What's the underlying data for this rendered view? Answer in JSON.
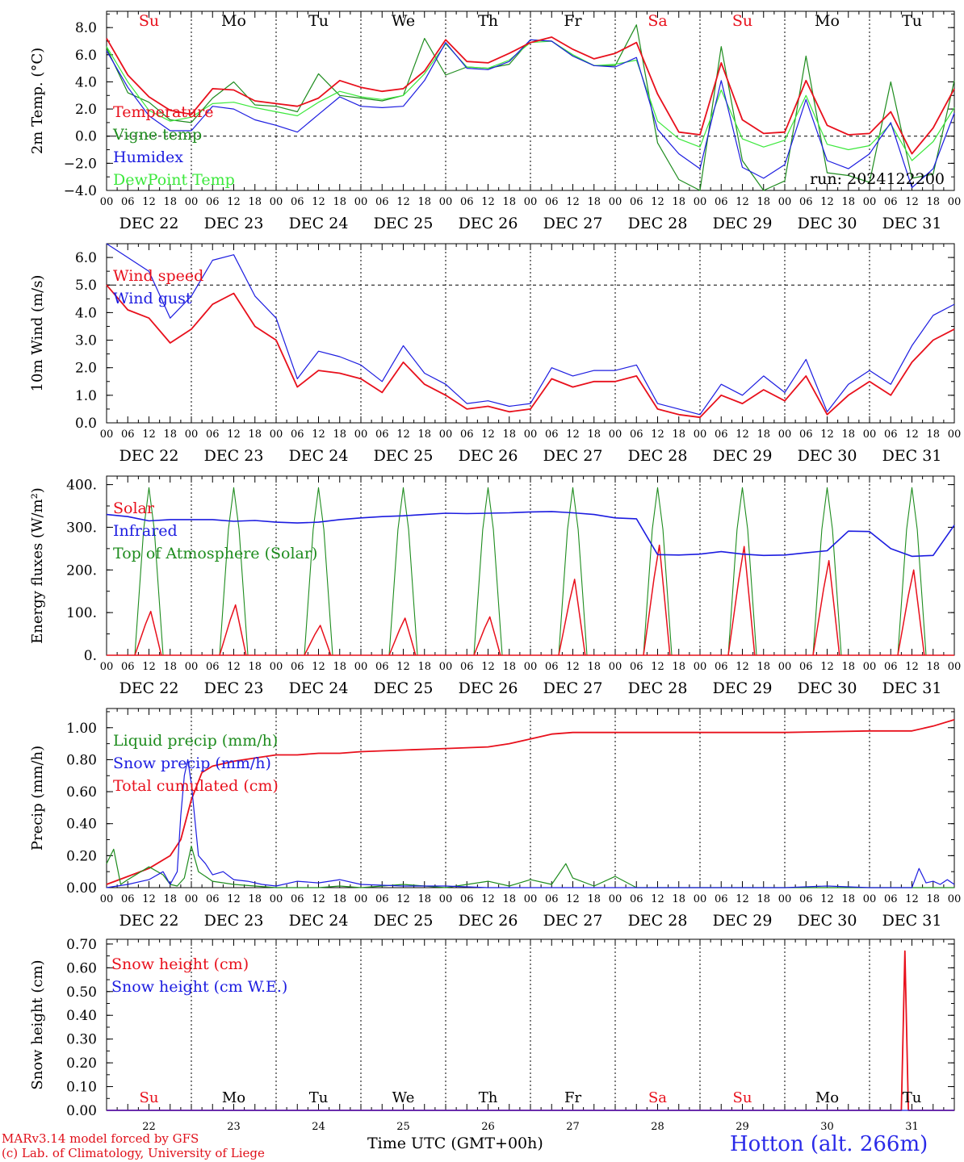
{
  "footer": {
    "model_line": "MARv3.14 model forced by GFS",
    "copyright_line": "(c) Lab. of Climatology, University of Liege",
    "time_axis_label": "Time UTC (GMT+00h)",
    "station": "Hotton (alt. 266m)"
  },
  "colors": {
    "red": "#e8101c",
    "green": "#1e8c1e",
    "blue": "#1c1ce0",
    "lightgreen": "#3ce83c"
  },
  "chart_data": [
    {
      "type": "line",
      "id": "temp",
      "ylabel": "2m Temp. (°C)",
      "ylim": [
        -4.0,
        9.2
      ],
      "yticks": [
        8.0,
        6.0,
        4.0,
        2.0,
        0.0,
        -2.0,
        -4.0
      ],
      "ytick_labels": [
        "8.0",
        "6.0",
        "4.0",
        "2.0",
        "0.0",
        "−2.0",
        "−4.0"
      ],
      "reference_line": 0.0,
      "x_unit": "hours since DEC 22 00 UTC",
      "day_labels": [
        "Su",
        "Mo",
        "Tu",
        "We",
        "Th",
        "Fr",
        "Sa",
        "Su",
        "Mo",
        "Tu"
      ],
      "day_label_colors": [
        "red",
        "black",
        "black",
        "black",
        "black",
        "black",
        "red",
        "red",
        "black",
        "black"
      ],
      "annotation": "run: 2024122200",
      "legend": [
        "Temperature",
        "Vigne temp",
        "Humidex",
        "DewPoint Temp"
      ],
      "series": [
        {
          "name": "Temperature",
          "color": "red",
          "x": [
            0,
            6,
            12,
            18,
            24,
            30,
            36,
            42,
            48,
            54,
            60,
            66,
            72,
            78,
            84,
            90,
            96,
            102,
            108,
            114,
            120,
            126,
            132,
            138,
            144,
            150,
            156,
            162,
            168,
            174,
            180,
            186,
            192,
            198,
            204,
            210,
            216,
            222,
            228,
            234,
            240
          ],
          "values": [
            7.2,
            4.5,
            2.9,
            1.9,
            1.6,
            3.5,
            3.4,
            2.6,
            2.4,
            2.2,
            2.8,
            4.1,
            3.6,
            3.3,
            3.5,
            4.8,
            7.1,
            5.5,
            5.4,
            6.1,
            6.9,
            7.3,
            6.4,
            5.7,
            6.1,
            6.9,
            3.1,
            0.3,
            0.1,
            5.4,
            1.2,
            0.2,
            0.3,
            4.1,
            0.8,
            0.1,
            0.2,
            1.8,
            -1.3,
            0.6,
            3.5
          ]
        },
        {
          "name": "Vigne temp",
          "color": "green",
          "x": [
            0,
            6,
            12,
            18,
            24,
            30,
            36,
            42,
            48,
            54,
            60,
            66,
            72,
            78,
            84,
            90,
            96,
            102,
            108,
            114,
            120,
            126,
            132,
            138,
            144,
            150,
            156,
            162,
            168,
            174,
            180,
            186,
            192,
            198,
            204,
            210,
            216,
            222,
            228,
            234,
            240
          ],
          "values": [
            6.5,
            3.2,
            2.5,
            1.2,
            1.0,
            2.8,
            4.0,
            2.3,
            2.2,
            1.8,
            4.6,
            3.0,
            2.8,
            2.6,
            3.0,
            7.2,
            4.5,
            5.1,
            5.0,
            5.3,
            7.1,
            7.0,
            5.9,
            5.2,
            5.2,
            8.2,
            -0.5,
            -3.2,
            -4.0,
            6.6,
            -1.8,
            -4.0,
            -3.3,
            5.9,
            -2.7,
            -2.9,
            -3.4,
            4.0,
            -3.1,
            -2.8,
            4.1
          ]
        },
        {
          "name": "Humidex",
          "color": "blue",
          "x": [
            0,
            6,
            12,
            18,
            24,
            30,
            36,
            42,
            48,
            54,
            60,
            66,
            72,
            78,
            84,
            90,
            96,
            102,
            108,
            114,
            120,
            126,
            132,
            138,
            144,
            150,
            156,
            162,
            168,
            174,
            180,
            186,
            192,
            198,
            204,
            210,
            216,
            222,
            228,
            234,
            240
          ],
          "values": [
            6.3,
            3.6,
            1.5,
            0.4,
            0.4,
            2.2,
            2.0,
            1.2,
            0.8,
            0.3,
            1.6,
            2.9,
            2.2,
            2.1,
            2.2,
            4.1,
            6.9,
            5.0,
            4.9,
            5.5,
            7.1,
            7.0,
            5.9,
            5.2,
            5.1,
            5.8,
            0.5,
            -1.3,
            -2.4,
            4.1,
            -2.3,
            -3.1,
            -2.1,
            2.7,
            -1.8,
            -2.4,
            -1.3,
            1.0,
            -3.8,
            -2.4,
            1.7
          ]
        },
        {
          "name": "DewPoint Temp",
          "color": "lightgreen",
          "x": [
            0,
            6,
            12,
            18,
            24,
            30,
            36,
            42,
            48,
            54,
            60,
            66,
            72,
            78,
            84,
            90,
            96,
            102,
            108,
            114,
            120,
            126,
            132,
            138,
            144,
            150,
            156,
            162,
            168,
            174,
            180,
            186,
            192,
            198,
            204,
            210,
            216,
            222,
            228,
            234,
            240
          ],
          "values": [
            6.6,
            4.0,
            1.9,
            1.1,
            1.4,
            2.4,
            2.5,
            2.1,
            1.8,
            1.5,
            2.5,
            3.3,
            2.9,
            2.7,
            3.0,
            4.6,
            6.8,
            5.1,
            5.0,
            5.6,
            6.9,
            7.0,
            6.0,
            5.2,
            5.3,
            5.6,
            1.1,
            -0.2,
            -0.8,
            3.4,
            -0.2,
            -0.8,
            -0.3,
            3.0,
            -0.6,
            -1.0,
            -0.7,
            0.9,
            -1.8,
            -0.4,
            2.1
          ]
        }
      ]
    },
    {
      "type": "line",
      "id": "wind",
      "ylabel": "10m Wind (m/s)",
      "ylim": [
        0,
        6.5
      ],
      "yticks": [
        6.0,
        5.0,
        4.0,
        3.0,
        2.0,
        1.0,
        0.0
      ],
      "ytick_labels": [
        "6.0",
        "5.0",
        "4.0",
        "3.0",
        "2.0",
        "1.0",
        "0.0"
      ],
      "reference_line": 5.0,
      "legend": [
        "Wind speed",
        "Wind gust"
      ],
      "series": [
        {
          "name": "Wind speed",
          "color": "red",
          "x": [
            0,
            6,
            12,
            18,
            24,
            30,
            36,
            42,
            48,
            54,
            60,
            66,
            72,
            78,
            84,
            90,
            96,
            102,
            108,
            114,
            120,
            126,
            132,
            138,
            144,
            150,
            156,
            162,
            168,
            174,
            180,
            186,
            192,
            198,
            204,
            210,
            216,
            222,
            228,
            234,
            240
          ],
          "values": [
            5.0,
            4.1,
            3.8,
            2.9,
            3.4,
            4.3,
            4.7,
            3.5,
            3.0,
            1.3,
            1.9,
            1.8,
            1.6,
            1.1,
            2.2,
            1.4,
            1.0,
            0.5,
            0.6,
            0.4,
            0.5,
            1.6,
            1.3,
            1.5,
            1.5,
            1.7,
            0.5,
            0.3,
            0.2,
            1.0,
            0.7,
            1.2,
            0.8,
            1.7,
            0.3,
            1.0,
            1.5,
            1.0,
            2.2,
            3.0,
            3.4
          ]
        },
        {
          "name": "Wind gust",
          "color": "blue",
          "x": [
            0,
            6,
            12,
            18,
            24,
            30,
            36,
            42,
            48,
            54,
            60,
            66,
            72,
            78,
            84,
            90,
            96,
            102,
            108,
            114,
            120,
            126,
            132,
            138,
            144,
            150,
            156,
            162,
            168,
            174,
            180,
            186,
            192,
            198,
            204,
            210,
            216,
            222,
            228,
            234,
            240
          ],
          "values": [
            6.5,
            6.0,
            5.5,
            3.8,
            4.6,
            5.9,
            6.1,
            4.6,
            3.8,
            1.6,
            2.6,
            2.4,
            2.1,
            1.5,
            2.8,
            1.8,
            1.4,
            0.7,
            0.8,
            0.6,
            0.7,
            2.0,
            1.7,
            1.9,
            1.9,
            2.1,
            0.7,
            0.5,
            0.3,
            1.4,
            1.0,
            1.7,
            1.1,
            2.3,
            0.4,
            1.4,
            1.9,
            1.4,
            2.8,
            3.9,
            4.3
          ]
        }
      ]
    },
    {
      "type": "line",
      "id": "flux",
      "ylabel": "Energy fluxes (W/m²)",
      "ylim": [
        0,
        420
      ],
      "yticks": [
        400,
        300,
        200,
        100,
        0
      ],
      "ytick_labels": [
        "400.",
        "300.",
        "200.",
        "100.",
        "0."
      ],
      "legend": [
        "Solar",
        "Infrared",
        "Top of Atmosphere (Solar)"
      ],
      "daily_toa_peak": 393,
      "daily_solar_peak": [
        103,
        118,
        70,
        87,
        90,
        178,
        258,
        255,
        222,
        200
      ],
      "series_infrared": {
        "name": "Infrared",
        "color": "blue",
        "x": [
          0,
          6,
          12,
          18,
          24,
          30,
          36,
          42,
          48,
          54,
          60,
          66,
          72,
          78,
          84,
          90,
          96,
          102,
          108,
          114,
          120,
          126,
          132,
          138,
          144,
          150,
          156,
          162,
          168,
          174,
          180,
          186,
          192,
          198,
          204,
          210,
          216,
          222,
          228,
          234,
          240
        ],
        "values": [
          330,
          325,
          315,
          318,
          318,
          318,
          314,
          316,
          312,
          310,
          312,
          318,
          322,
          325,
          327,
          330,
          333,
          332,
          333,
          334,
          336,
          337,
          334,
          330,
          322,
          320,
          236,
          235,
          237,
          243,
          237,
          234,
          235,
          240,
          245,
          291,
          290,
          250,
          232,
          234,
          305
        ]
      }
    },
    {
      "type": "line",
      "id": "precip",
      "ylabel": "Precip (mm/h)",
      "ylim": [
        0,
        1.12
      ],
      "yticks": [
        1.0,
        0.8,
        0.6,
        0.4,
        0.2,
        0.0
      ],
      "ytick_labels": [
        "1.00",
        "0.80",
        "0.60",
        "0.40",
        "0.20",
        "0.00"
      ],
      "legend": [
        "Liquid precip (mm/h)",
        "Snow precip (mm/h)",
        "Total cumulated (cm)"
      ],
      "series": [
        {
          "name": "Total cumulated (cm)",
          "color": "red",
          "x": [
            0,
            6,
            12,
            18,
            21,
            24,
            27,
            30,
            36,
            42,
            48,
            54,
            60,
            66,
            72,
            84,
            96,
            108,
            114,
            120,
            126,
            132,
            144,
            168,
            192,
            216,
            228,
            234,
            240
          ],
          "values": [
            0.02,
            0.07,
            0.12,
            0.2,
            0.3,
            0.55,
            0.72,
            0.76,
            0.79,
            0.81,
            0.83,
            0.83,
            0.84,
            0.84,
            0.85,
            0.86,
            0.87,
            0.88,
            0.9,
            0.93,
            0.96,
            0.97,
            0.97,
            0.97,
            0.97,
            0.98,
            0.98,
            1.01,
            1.05
          ]
        },
        {
          "name": "Liquid precip (mm/h)",
          "color": "green",
          "x": [
            0,
            2,
            4,
            6,
            12,
            16,
            18,
            20,
            22,
            24,
            26,
            30,
            36,
            42,
            48,
            54,
            60,
            66,
            72,
            84,
            96,
            108,
            114,
            120,
            126,
            130,
            132,
            138,
            144,
            150,
            156,
            168,
            192,
            216,
            228,
            234,
            240
          ],
          "values": [
            0.15,
            0.24,
            0.02,
            0.05,
            0.13,
            0.08,
            0.02,
            0.01,
            0.06,
            0.26,
            0.1,
            0.04,
            0.02,
            0.01,
            0.0,
            0.0,
            0.0,
            0.01,
            0.0,
            0.02,
            0.0,
            0.04,
            0.01,
            0.05,
            0.02,
            0.15,
            0.06,
            0.01,
            0.07,
            0.0,
            0.0,
            0.0,
            0.0,
            0.0,
            0.0,
            0.0,
            0.0
          ]
        },
        {
          "name": "Snow precip (mm/h)",
          "color": "blue",
          "x": [
            0,
            6,
            12,
            16,
            18,
            20,
            21,
            22,
            23,
            24,
            26,
            28,
            30,
            33,
            36,
            40,
            44,
            48,
            54,
            60,
            66,
            72,
            84,
            96,
            108,
            120,
            144,
            168,
            192,
            204,
            216,
            228,
            230,
            232,
            234,
            236,
            238,
            240
          ],
          "values": [
            0.0,
            0.02,
            0.05,
            0.1,
            0.02,
            0.1,
            0.45,
            0.7,
            0.8,
            0.65,
            0.2,
            0.15,
            0.08,
            0.1,
            0.05,
            0.04,
            0.02,
            0.01,
            0.04,
            0.03,
            0.05,
            0.02,
            0.01,
            0.01,
            0.0,
            0.0,
            0.0,
            0.0,
            0.0,
            0.01,
            0.0,
            0.0,
            0.12,
            0.03,
            0.04,
            0.02,
            0.05,
            0.02
          ]
        }
      ]
    },
    {
      "type": "line",
      "id": "snow",
      "ylabel": "Snow height (cm)",
      "ylim": [
        0,
        0.72
      ],
      "yticks": [
        0.7,
        0.6,
        0.5,
        0.4,
        0.3,
        0.2,
        0.1,
        0.0
      ],
      "ytick_labels": [
        "0.70",
        "0.60",
        "0.50",
        "0.40",
        "0.30",
        "0.20",
        "0.10",
        "0.00"
      ],
      "legend": [
        "Snow height (cm)",
        "Snow height (cm W.E.)"
      ],
      "day_numbers": [
        "22",
        "23",
        "24",
        "25",
        "26",
        "27",
        "28",
        "29",
        "30",
        "31"
      ],
      "series": [
        {
          "name": "Snow height (cm)",
          "color": "red",
          "x": [
            0,
            225,
            226,
            227,
            228,
            240
          ],
          "values": [
            0,
            0,
            0.67,
            0,
            0,
            0
          ]
        },
        {
          "name": "Snow height (cm W.E.)",
          "color": "blue",
          "x": [
            0,
            240
          ],
          "values": [
            0,
            0
          ]
        }
      ]
    }
  ],
  "axis": {
    "hour_labels": [
      "00",
      "06",
      "12",
      "18"
    ],
    "date_labels": [
      "DEC 22",
      "DEC 23",
      "DEC 24",
      "DEC 25",
      "DEC 26",
      "DEC 27",
      "DEC 28",
      "DEC 29",
      "DEC 30",
      "DEC 31"
    ]
  }
}
